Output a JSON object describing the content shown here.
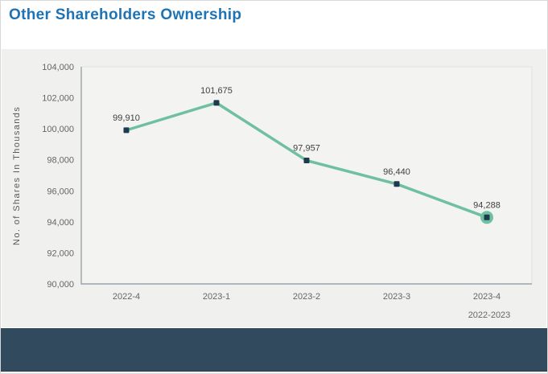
{
  "page": {
    "title": "Other Shareholders Ownership"
  },
  "chart_data": {
    "type": "line",
    "title": "Other Shareholders Ownership",
    "categories": [
      "2022-4",
      "2023-1",
      "2023-2",
      "2023-3",
      "2023-4"
    ],
    "values": [
      99910,
      101675,
      97957,
      96440,
      94288
    ],
    "data_labels": [
      "99,910",
      "101,675",
      "97,957",
      "96,440",
      "94,288"
    ],
    "xlabel": "",
    "ylabel": "No. of Shares In Thousands",
    "ylim": [
      90000,
      104000
    ],
    "ytick_step": 2000,
    "ytick_labels": [
      "90,000",
      "92,000",
      "94,000",
      "96,000",
      "98,000",
      "100,000",
      "102,000",
      "104,000"
    ],
    "period_label": "2022-2023",
    "grid": false,
    "legend": "none",
    "marker_shape": "square",
    "last_point_highlight": "circle-ring"
  },
  "colors": {
    "title_text": "#1e73b5",
    "panel_bg": "#f0f0ef",
    "plot_bg": "#f3f3f2",
    "plot_border": "#e2e2e1",
    "axis_line": "#9aa3aa",
    "tick_text": "#666666",
    "data_label_text": "#404040",
    "y_axis_title_text": "#595959",
    "line": "#6ec0a1",
    "marker": "#1e3a4f",
    "footer_bar": "#314a5d"
  }
}
